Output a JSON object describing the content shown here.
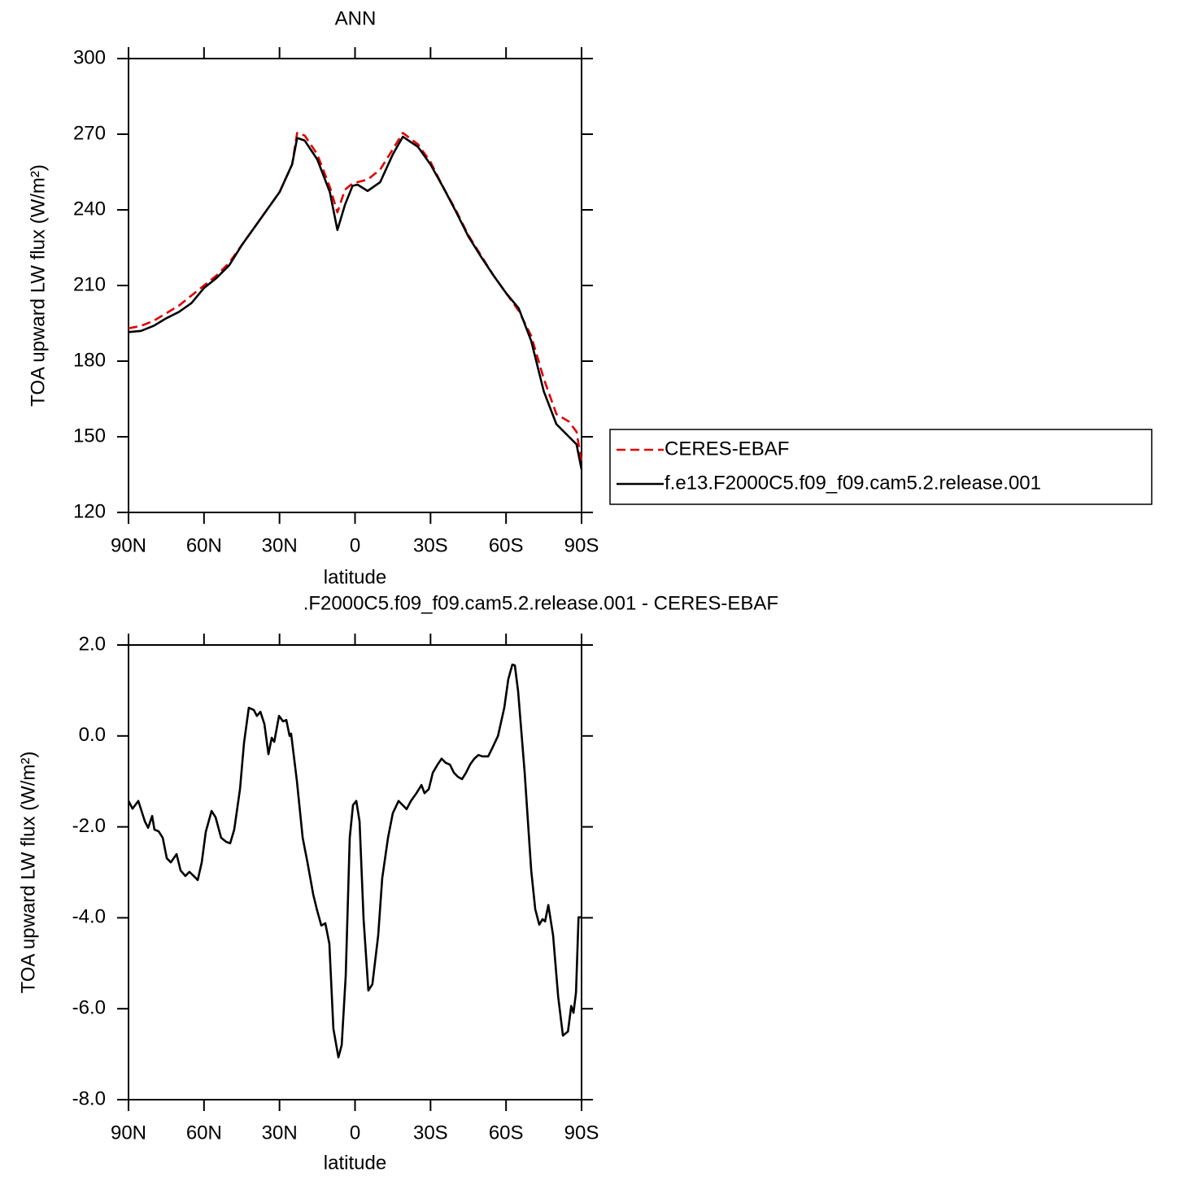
{
  "chart_data": [
    {
      "type": "line",
      "title": "ANN",
      "xlabel": "latitude",
      "ylabel": "TOA upward LW flux (W/m²)",
      "xlim": [
        90,
        -90
      ],
      "ylim": [
        120,
        300
      ],
      "xticks": [
        {
          "value": 90,
          "label": "90N"
        },
        {
          "value": 60,
          "label": "60N"
        },
        {
          "value": 30,
          "label": "30N"
        },
        0,
        {
          "value": -30,
          "label": "30S"
        },
        {
          "value": -60,
          "label": "60S"
        },
        {
          "value": -90,
          "label": "90S"
        }
      ],
      "yticks": [
        120,
        150,
        180,
        210,
        240,
        270,
        300
      ],
      "legend": "right",
      "x": [
        90,
        85,
        80,
        75,
        70,
        65,
        60,
        55,
        50,
        45,
        40,
        35,
        30,
        25,
        23,
        20,
        15,
        10,
        7,
        4,
        1,
        -1,
        -5,
        -10,
        -15,
        -19,
        -25,
        -30,
        -35,
        -40,
        -45,
        -50,
        -55,
        -60,
        -65,
        -70,
        -75,
        -80,
        -85,
        -88,
        -90
      ],
      "series": [
        {
          "name": "CERES-EBAF",
          "color": "#e00000",
          "line_style": "dashed",
          "values": [
            193,
            194,
            196,
            199,
            202,
            206,
            210,
            214,
            219,
            226,
            233,
            240,
            247,
            258,
            270.5,
            269.5,
            262,
            249,
            239,
            248,
            250.5,
            251,
            252,
            256,
            264,
            270.5,
            266,
            259,
            249,
            240,
            230,
            222,
            214,
            207,
            200,
            190,
            173,
            159,
            156,
            152,
            140
          ]
        },
        {
          "name": "f.e13.F2000C5.f09_f09.cam5.2.release.001",
          "color": "#000000",
          "line_style": "solid",
          "values": [
            191.5,
            192,
            194,
            197,
            199.5,
            203,
            209,
            213,
            218,
            226,
            233,
            240,
            247,
            258,
            268.5,
            267.5,
            260,
            247,
            232,
            242,
            249.5,
            250,
            247.5,
            251,
            262,
            269,
            265,
            258,
            249,
            239.5,
            229.5,
            221.5,
            214,
            207,
            201,
            188,
            168,
            155,
            150,
            147,
            137
          ]
        }
      ]
    },
    {
      "type": "line",
      "title": ".F2000C5.f09_f09.cam5.2.release.001 - CERES-EBAF",
      "xlabel": "latitude",
      "ylabel": "TOA upward LW flux (W/m²)",
      "xlim": [
        90,
        -90
      ],
      "ylim": [
        -8,
        2
      ],
      "xticks": [
        {
          "value": 90,
          "label": "90N"
        },
        {
          "value": 60,
          "label": "60N"
        },
        {
          "value": 30,
          "label": "30N"
        },
        0,
        {
          "value": -30,
          "label": "30S"
        },
        {
          "value": -60,
          "label": "60S"
        },
        {
          "value": -90,
          "label": "90S"
        }
      ],
      "yticks": [
        {
          "value": -8,
          "label": "-8.0"
        },
        {
          "value": -6,
          "label": "-6.0"
        },
        {
          "value": -4,
          "label": "-4.0"
        },
        {
          "value": -2,
          "label": "-2.0"
        },
        {
          "value": 0,
          "label": "0.0"
        },
        {
          "value": 2,
          "label": "2.0"
        }
      ],
      "color": "#000000",
      "x": [
        90,
        88.4,
        86.1,
        83.5,
        82.2,
        80.6,
        79.7,
        78,
        76.4,
        74.8,
        73.2,
        70.9,
        69.3,
        67.4,
        65.8,
        64.1,
        62.5,
        60.9,
        59.3,
        57,
        55.4,
        53.2,
        51.2,
        49.6,
        48,
        45.7,
        44.1,
        42.2,
        40.2,
        39,
        37.6,
        36,
        34.4,
        33.1,
        32.1,
        30.2,
        28.6,
        27.3,
        26,
        25.4,
        23.1,
        20.8,
        18.9,
        16.6,
        15,
        13.4,
        11.8,
        10.2,
        8.6,
        6.6,
        5.3,
        3.7,
        2.1,
        0.8,
        -0.5,
        -1.8,
        -3.4,
        -5.3,
        -6.9,
        -9.2,
        -10.8,
        -13.1,
        -15,
        -17.3,
        -18.9,
        -20.5,
        -22.2,
        -24.4,
        -26.4,
        -27.6,
        -29.3,
        -30.9,
        -32.8,
        -34.4,
        -36,
        -37.7,
        -39.3,
        -40.9,
        -42.5,
        -44.1,
        -45.7,
        -47.4,
        -49,
        -50.6,
        -52.9,
        -54.5,
        -56.8,
        -59.3,
        -60.9,
        -62.5,
        -63.5,
        -64.8,
        -67.4,
        -70,
        -71.6,
        -73.2,
        -74.5,
        -75.5,
        -76.8,
        -78.7,
        -80.7,
        -82.6,
        -84.6,
        -85.9,
        -86.8,
        -87.8,
        -88.8,
        -90
      ],
      "values": [
        -1.43,
        -1.6,
        -1.43,
        -1.88,
        -2.02,
        -1.76,
        -2.06,
        -2.1,
        -2.24,
        -2.69,
        -2.78,
        -2.6,
        -2.96,
        -3.08,
        -2.99,
        -3.08,
        -3.17,
        -2.78,
        -2.11,
        -1.65,
        -1.79,
        -2.24,
        -2.33,
        -2.36,
        -2.06,
        -1.17,
        -0.15,
        0.62,
        0.57,
        0.44,
        0.53,
        0.26,
        -0.4,
        -0.04,
        -0.13,
        0.44,
        0.32,
        0.35,
        0,
        0.05,
        -0.99,
        -2.24,
        -2.78,
        -3.49,
        -3.85,
        -4.17,
        -4.12,
        -4.57,
        -6.44,
        -7.07,
        -6.8,
        -5.28,
        -2.24,
        -1.52,
        -1.43,
        -1.88,
        -4.03,
        -5.6,
        -5.46,
        -4.39,
        -3.13,
        -2.24,
        -1.7,
        -1.43,
        -1.52,
        -1.61,
        -1.43,
        -1.26,
        -1.08,
        -1.26,
        -1.17,
        -0.81,
        -0.63,
        -0.5,
        -0.59,
        -0.63,
        -0.81,
        -0.9,
        -0.95,
        -0.81,
        -0.63,
        -0.5,
        -0.42,
        -0.45,
        -0.45,
        -0.27,
        0,
        0.62,
        1.25,
        1.57,
        1.55,
        0.98,
        -0.81,
        -2.96,
        -3.81,
        -4.15,
        -4.03,
        -4.08,
        -3.72,
        -4.39,
        -5.73,
        -6.59,
        -6.5,
        -5.94,
        -6.09,
        -5.64,
        -3.99,
        -3.99
      ]
    }
  ]
}
